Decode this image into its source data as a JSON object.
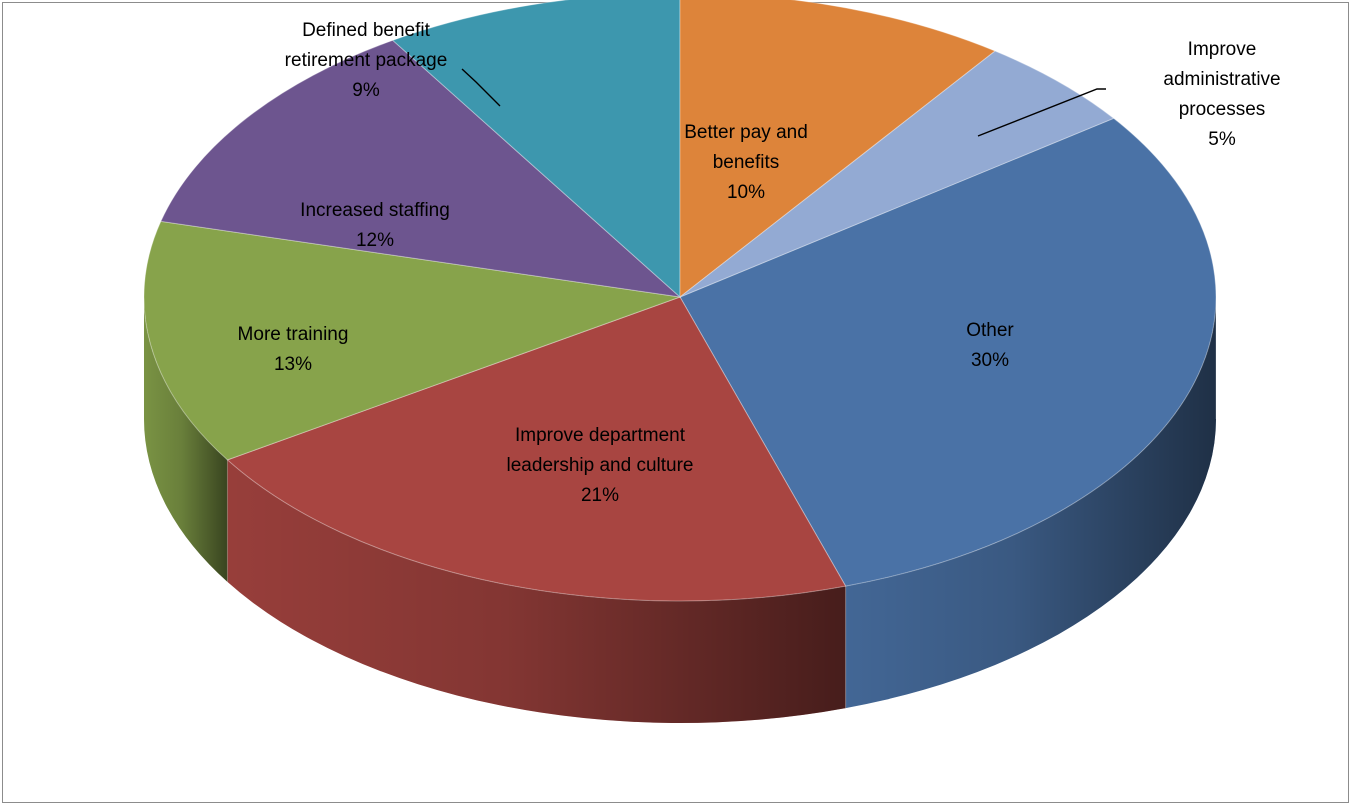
{
  "chart_data": {
    "type": "pie",
    "style": "3d",
    "legend": "none",
    "slices": [
      {
        "label": [
          "Other"
        ],
        "pct_label": "30%",
        "value": 30,
        "color": "#4a72a6"
      },
      {
        "label": [
          "Improve department",
          "leadership and culture"
        ],
        "pct_label": "21%",
        "value": 21,
        "color": "#a84541"
      },
      {
        "label": [
          "More training"
        ],
        "pct_label": "13%",
        "value": 13,
        "color": "#87a34b"
      },
      {
        "label": [
          "Increased staffing"
        ],
        "pct_label": "12%",
        "value": 12,
        "color": "#6d558f"
      },
      {
        "label": [
          "Defined benefit",
          "retirement package"
        ],
        "pct_label": "9%",
        "value": 9,
        "color": "#3d97ae"
      },
      {
        "label": [
          "Better pay and",
          "benefits"
        ],
        "pct_label": "10%",
        "value": 10,
        "color": "#dd843a"
      },
      {
        "label": [
          "Improve",
          "administrative",
          "processes"
        ],
        "pct_label": "5%",
        "value": 5,
        "color": "#93aad3"
      }
    ]
  }
}
